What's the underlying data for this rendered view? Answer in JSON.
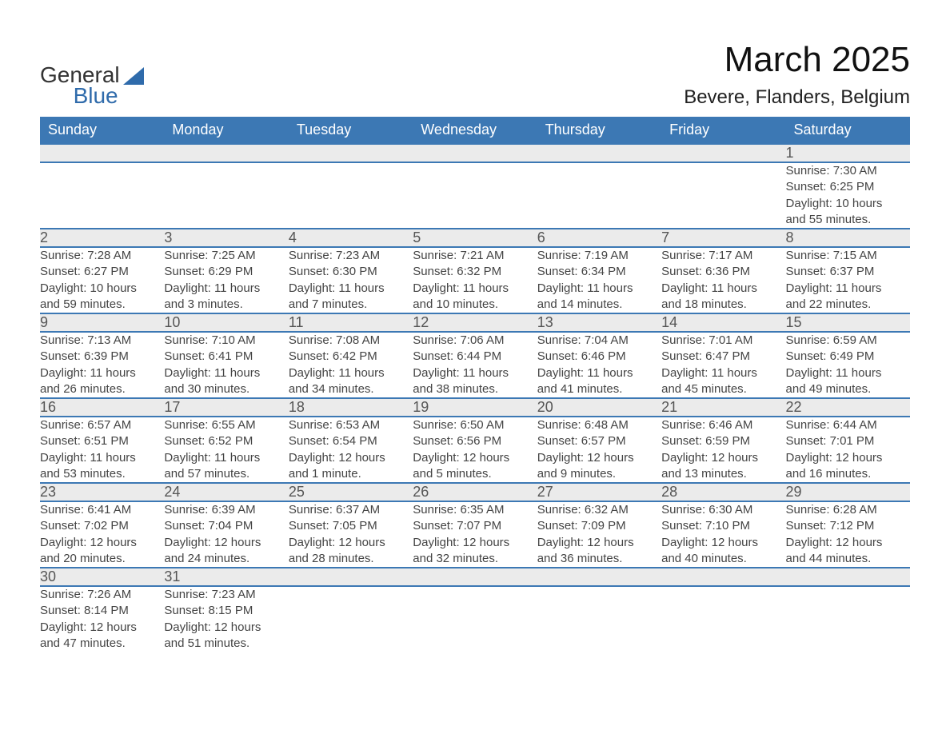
{
  "logo": {
    "line1": "General",
    "line2": "Blue"
  },
  "title": "March 2025",
  "location": "Bevere, Flanders, Belgium",
  "weekday_headers": [
    "Sunday",
    "Monday",
    "Tuesday",
    "Wednesday",
    "Thursday",
    "Friday",
    "Saturday"
  ],
  "colors": {
    "header_bg": "#3c78b4",
    "header_text": "#ffffff",
    "daynum_bg": "#ebebeb",
    "row_divider": "#3c78b4",
    "logo_blue": "#2f6bab",
    "page_bg": "#ffffff",
    "body_text": "#444444"
  },
  "typography": {
    "title_fontsize": 44,
    "location_fontsize": 24,
    "header_fontsize": 18,
    "daynum_fontsize": 18,
    "cell_fontsize": 15
  },
  "weeks": [
    [
      null,
      null,
      null,
      null,
      null,
      null,
      {
        "d": "1",
        "sr": "Sunrise: 7:30 AM",
        "ss": "Sunset: 6:25 PM",
        "dl1": "Daylight: 10 hours",
        "dl2": "and 55 minutes."
      }
    ],
    [
      {
        "d": "2",
        "sr": "Sunrise: 7:28 AM",
        "ss": "Sunset: 6:27 PM",
        "dl1": "Daylight: 10 hours",
        "dl2": "and 59 minutes."
      },
      {
        "d": "3",
        "sr": "Sunrise: 7:25 AM",
        "ss": "Sunset: 6:29 PM",
        "dl1": "Daylight: 11 hours",
        "dl2": "and 3 minutes."
      },
      {
        "d": "4",
        "sr": "Sunrise: 7:23 AM",
        "ss": "Sunset: 6:30 PM",
        "dl1": "Daylight: 11 hours",
        "dl2": "and 7 minutes."
      },
      {
        "d": "5",
        "sr": "Sunrise: 7:21 AM",
        "ss": "Sunset: 6:32 PM",
        "dl1": "Daylight: 11 hours",
        "dl2": "and 10 minutes."
      },
      {
        "d": "6",
        "sr": "Sunrise: 7:19 AM",
        "ss": "Sunset: 6:34 PM",
        "dl1": "Daylight: 11 hours",
        "dl2": "and 14 minutes."
      },
      {
        "d": "7",
        "sr": "Sunrise: 7:17 AM",
        "ss": "Sunset: 6:36 PM",
        "dl1": "Daylight: 11 hours",
        "dl2": "and 18 minutes."
      },
      {
        "d": "8",
        "sr": "Sunrise: 7:15 AM",
        "ss": "Sunset: 6:37 PM",
        "dl1": "Daylight: 11 hours",
        "dl2": "and 22 minutes."
      }
    ],
    [
      {
        "d": "9",
        "sr": "Sunrise: 7:13 AM",
        "ss": "Sunset: 6:39 PM",
        "dl1": "Daylight: 11 hours",
        "dl2": "and 26 minutes."
      },
      {
        "d": "10",
        "sr": "Sunrise: 7:10 AM",
        "ss": "Sunset: 6:41 PM",
        "dl1": "Daylight: 11 hours",
        "dl2": "and 30 minutes."
      },
      {
        "d": "11",
        "sr": "Sunrise: 7:08 AM",
        "ss": "Sunset: 6:42 PM",
        "dl1": "Daylight: 11 hours",
        "dl2": "and 34 minutes."
      },
      {
        "d": "12",
        "sr": "Sunrise: 7:06 AM",
        "ss": "Sunset: 6:44 PM",
        "dl1": "Daylight: 11 hours",
        "dl2": "and 38 minutes."
      },
      {
        "d": "13",
        "sr": "Sunrise: 7:04 AM",
        "ss": "Sunset: 6:46 PM",
        "dl1": "Daylight: 11 hours",
        "dl2": "and 41 minutes."
      },
      {
        "d": "14",
        "sr": "Sunrise: 7:01 AM",
        "ss": "Sunset: 6:47 PM",
        "dl1": "Daylight: 11 hours",
        "dl2": "and 45 minutes."
      },
      {
        "d": "15",
        "sr": "Sunrise: 6:59 AM",
        "ss": "Sunset: 6:49 PM",
        "dl1": "Daylight: 11 hours",
        "dl2": "and 49 minutes."
      }
    ],
    [
      {
        "d": "16",
        "sr": "Sunrise: 6:57 AM",
        "ss": "Sunset: 6:51 PM",
        "dl1": "Daylight: 11 hours",
        "dl2": "and 53 minutes."
      },
      {
        "d": "17",
        "sr": "Sunrise: 6:55 AM",
        "ss": "Sunset: 6:52 PM",
        "dl1": "Daylight: 11 hours",
        "dl2": "and 57 minutes."
      },
      {
        "d": "18",
        "sr": "Sunrise: 6:53 AM",
        "ss": "Sunset: 6:54 PM",
        "dl1": "Daylight: 12 hours",
        "dl2": "and 1 minute."
      },
      {
        "d": "19",
        "sr": "Sunrise: 6:50 AM",
        "ss": "Sunset: 6:56 PM",
        "dl1": "Daylight: 12 hours",
        "dl2": "and 5 minutes."
      },
      {
        "d": "20",
        "sr": "Sunrise: 6:48 AM",
        "ss": "Sunset: 6:57 PM",
        "dl1": "Daylight: 12 hours",
        "dl2": "and 9 minutes."
      },
      {
        "d": "21",
        "sr": "Sunrise: 6:46 AM",
        "ss": "Sunset: 6:59 PM",
        "dl1": "Daylight: 12 hours",
        "dl2": "and 13 minutes."
      },
      {
        "d": "22",
        "sr": "Sunrise: 6:44 AM",
        "ss": "Sunset: 7:01 PM",
        "dl1": "Daylight: 12 hours",
        "dl2": "and 16 minutes."
      }
    ],
    [
      {
        "d": "23",
        "sr": "Sunrise: 6:41 AM",
        "ss": "Sunset: 7:02 PM",
        "dl1": "Daylight: 12 hours",
        "dl2": "and 20 minutes."
      },
      {
        "d": "24",
        "sr": "Sunrise: 6:39 AM",
        "ss": "Sunset: 7:04 PM",
        "dl1": "Daylight: 12 hours",
        "dl2": "and 24 minutes."
      },
      {
        "d": "25",
        "sr": "Sunrise: 6:37 AM",
        "ss": "Sunset: 7:05 PM",
        "dl1": "Daylight: 12 hours",
        "dl2": "and 28 minutes."
      },
      {
        "d": "26",
        "sr": "Sunrise: 6:35 AM",
        "ss": "Sunset: 7:07 PM",
        "dl1": "Daylight: 12 hours",
        "dl2": "and 32 minutes."
      },
      {
        "d": "27",
        "sr": "Sunrise: 6:32 AM",
        "ss": "Sunset: 7:09 PM",
        "dl1": "Daylight: 12 hours",
        "dl2": "and 36 minutes."
      },
      {
        "d": "28",
        "sr": "Sunrise: 6:30 AM",
        "ss": "Sunset: 7:10 PM",
        "dl1": "Daylight: 12 hours",
        "dl2": "and 40 minutes."
      },
      {
        "d": "29",
        "sr": "Sunrise: 6:28 AM",
        "ss": "Sunset: 7:12 PM",
        "dl1": "Daylight: 12 hours",
        "dl2": "and 44 minutes."
      }
    ],
    [
      {
        "d": "30",
        "sr": "Sunrise: 7:26 AM",
        "ss": "Sunset: 8:14 PM",
        "dl1": "Daylight: 12 hours",
        "dl2": "and 47 minutes."
      },
      {
        "d": "31",
        "sr": "Sunrise: 7:23 AM",
        "ss": "Sunset: 8:15 PM",
        "dl1": "Daylight: 12 hours",
        "dl2": "and 51 minutes."
      },
      null,
      null,
      null,
      null,
      null
    ]
  ]
}
